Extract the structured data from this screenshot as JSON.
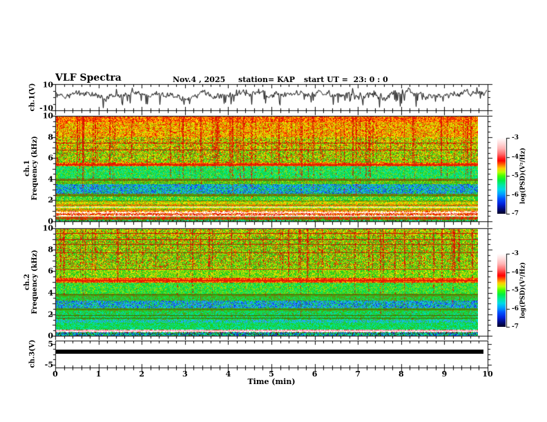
{
  "header": {
    "title": "VLF Spectra",
    "date": "Nov.4 , 2025",
    "station": "station= KAP",
    "start_ut": "start UT =  23: 0 : 0"
  },
  "axes": {
    "time": {
      "title": "Time (min)",
      "min": 0,
      "max": 10,
      "major_ticks": [
        0,
        1,
        2,
        3,
        4,
        5,
        6,
        7,
        8,
        9,
        10
      ],
      "minor_step": 0.2
    },
    "ch1_voltage": {
      "title": "ch.1(V)",
      "ylim": [
        -10,
        10
      ],
      "tick_labels": [
        10,
        -10
      ],
      "minor_ticks": [
        5,
        0,
        -5
      ]
    },
    "ch1_spectrogram": {
      "title_line1": "ch.1",
      "title_line2": "Frequency (kHz)",
      "ylim": [
        0,
        10
      ],
      "tick_labels": [
        10,
        8,
        6,
        4,
        2,
        0
      ],
      "minor_step": 0.5
    },
    "ch2_spectrogram": {
      "title_line1": "ch.2",
      "title_line2": "Frequency (kHz)",
      "ylim": [
        0,
        10
      ],
      "tick_labels": [
        10,
        8,
        6,
        4,
        2,
        0
      ],
      "minor_step": 0.5
    },
    "ch3_voltage": {
      "title": "ch.3(V)",
      "ylim": [
        -5,
        5
      ],
      "tick_labels": [
        5,
        -5
      ],
      "minor_ticks": [
        2.5,
        0,
        -2.5
      ]
    }
  },
  "colorbars": [
    {
      "label": "log(PSD)(V²/Hz)",
      "tick_labels": [
        -3,
        -4,
        -5,
        -6,
        -7
      ]
    },
    {
      "label": "log(PSD)(V²/Hz)",
      "tick_labels": [
        -3,
        -4,
        -5,
        -6,
        -7
      ]
    }
  ],
  "colorbar_gradient": [
    [
      "#ffffff",
      0
    ],
    [
      "#ffe2e2",
      0.06
    ],
    [
      "#ffb4b4",
      0.14
    ],
    [
      "#ff7070",
      0.21
    ],
    [
      "#ff2020",
      0.27
    ],
    [
      "#ff0000",
      0.3
    ],
    [
      "#ff6600",
      0.35
    ],
    [
      "#ffcc00",
      0.4
    ],
    [
      "#bbff00",
      0.45
    ],
    [
      "#44ff00",
      0.5
    ],
    [
      "#00ee44",
      0.56
    ],
    [
      "#00e8a0",
      0.62
    ],
    [
      "#00d8e8",
      0.68
    ],
    [
      "#00a0ff",
      0.74
    ],
    [
      "#0055ff",
      0.8
    ],
    [
      "#0022dd",
      0.87
    ],
    [
      "#000d88",
      0.93
    ],
    [
      "#000022",
      1
    ]
  ],
  "chart_data": [
    {
      "type": "line",
      "name": "ch1_voltage_waveform",
      "ylabel": "ch.1(V)",
      "xlim": [
        0,
        10
      ],
      "ylim": [
        -10,
        10
      ],
      "xlabel": "Time (min)",
      "series_character": {
        "mean": 2.3,
        "noise": 1.6,
        "wander": 1.1,
        "spike_rate": 0.1,
        "spike_down": [
          -9,
          -4
        ],
        "spike_up": [
          2,
          5
        ],
        "seed": 13
      }
    },
    {
      "type": "heatmap",
      "name": "ch1_spectrogram",
      "ylabel": "Frequency (kHz)",
      "xlim": [
        0,
        10
      ],
      "ylim": [
        0,
        10
      ],
      "data_end_min": 9.77,
      "seed": 11,
      "value_scale": {
        "label": "log(PSD)(V²/Hz)",
        "range": [
          -7,
          -3
        ]
      },
      "bands": [
        {
          "f": [
            9.5,
            10.0
          ],
          "mix": [
            [
              "#ee1500",
              0.45
            ],
            [
              "#ff7700",
              0.25
            ],
            [
              "#ffdd00",
              0.3
            ]
          ],
          "streak": 1.0
        },
        {
          "f": [
            8.0,
            9.5
          ],
          "mix": [
            [
              "#ffdd00",
              0.3
            ],
            [
              "#ff7700",
              0.2
            ],
            [
              "#ee1500",
              0.22
            ],
            [
              "#aadd00",
              0.28
            ]
          ],
          "streak": 1.0
        },
        {
          "f": [
            6.9,
            8.0
          ],
          "mix": [
            [
              "#aadd00",
              0.34
            ],
            [
              "#ffdd00",
              0.26
            ],
            [
              "#22cc22",
              0.2
            ],
            [
              "#ee1500",
              0.2
            ]
          ],
          "streak": 0.95
        },
        {
          "f": [
            5.6,
            6.9
          ],
          "mix": [
            [
              "#22cc22",
              0.34
            ],
            [
              "#aadd00",
              0.3
            ],
            [
              "#ffdd00",
              0.2
            ],
            [
              "#ee1500",
              0.16
            ]
          ],
          "streak": 0.9
        },
        {
          "f": [
            5.25,
            5.6
          ],
          "mix": [
            [
              "#ee1500",
              0.5
            ],
            [
              "#ff7700",
              0.3
            ],
            [
              "#ffdd00",
              0.2
            ]
          ],
          "streak": 0.5
        },
        {
          "f": [
            4.1,
            5.25
          ],
          "mix": [
            [
              "#00e87a",
              0.42
            ],
            [
              "#22cc22",
              0.3
            ],
            [
              "#aadd00",
              0.16
            ],
            [
              "#00d8cc",
              0.12
            ]
          ],
          "streak": 0.55
        },
        {
          "f": [
            3.85,
            4.1
          ],
          "mix": [
            [
              "#777711",
              0.4
            ],
            [
              "#22cc22",
              0.35
            ],
            [
              "#bb2200",
              0.25
            ]
          ],
          "streak": 0.4
        },
        {
          "f": [
            3.55,
            3.85
          ],
          "mix": [
            [
              "#22cc22",
              0.5
            ],
            [
              "#aadd00",
              0.3
            ],
            [
              "#777711",
              0.2
            ]
          ],
          "streak": 0.35
        },
        {
          "f": [
            2.6,
            3.55
          ],
          "mix": [
            [
              "#3399ff",
              0.3
            ],
            [
              "#1133ee",
              0.2
            ],
            [
              "#00d8cc",
              0.22
            ],
            [
              "#22cc22",
              0.28
            ]
          ],
          "streak": 0.25
        },
        {
          "f": [
            2.4,
            2.6
          ],
          "mix": [
            [
              "#777711",
              0.45
            ],
            [
              "#22cc22",
              0.4
            ],
            [
              "#bb2200",
              0.15
            ]
          ],
          "streak": 0.2
        },
        {
          "f": [
            1.95,
            2.4
          ],
          "mix": [
            [
              "#22cc22",
              0.5
            ],
            [
              "#00e87a",
              0.25
            ],
            [
              "#ffdd00",
              0.25
            ]
          ],
          "streak": 0.2
        },
        {
          "f": [
            1.0,
            1.95
          ],
          "mix": [
            [
              "#aadd00",
              0.36
            ],
            [
              "#ffdd00",
              0.3
            ],
            [
              "#22cc22",
              0.2
            ],
            [
              "#ff7700",
              0.14
            ]
          ],
          "streak": 0.25
        },
        {
          "f": [
            0.45,
            1.0
          ],
          "mix": [
            [
              "#ffffff",
              0.35
            ],
            [
              "#ffdd00",
              0.18
            ],
            [
              "#ee1500",
              0.32
            ],
            [
              "#ff7700",
              0.15
            ]
          ],
          "streak": 0.1
        },
        {
          "f": [
            0.12,
            0.45
          ],
          "mix": [
            [
              "#ee1500",
              0.35
            ],
            [
              "#ff7700",
              0.18
            ],
            [
              "#22cc22",
              0.27
            ],
            [
              "#777711",
              0.2
            ]
          ],
          "streak": 0.1
        },
        {
          "f": [
            0.0,
            0.12
          ],
          "mix": [
            [
              "#22cc22",
              0.45
            ],
            [
              "#00d8cc",
              0.3
            ],
            [
              "#333300",
              0.25
            ]
          ],
          "streak": 0
        }
      ],
      "hlines": [
        {
          "f": 7.5,
          "color": "#cc1100",
          "px": 1
        },
        {
          "f": 6.85,
          "color": "#cc1100",
          "px": 1
        },
        {
          "f": 5.45,
          "color": "#dd2200",
          "px": 2
        },
        {
          "f": 3.95,
          "color": "#775500",
          "px": 1
        },
        {
          "f": 2.5,
          "color": "#667700",
          "px": 1
        },
        {
          "f": 1.98,
          "color": "#667700",
          "px": 1
        },
        {
          "f": 1.6,
          "color": "#dd3300",
          "px": 1
        },
        {
          "f": 1.35,
          "color": "#ffffff",
          "px": 1
        },
        {
          "f": 1.15,
          "color": "#dd3300",
          "px": 1
        },
        {
          "f": 0.85,
          "color": "#ffffff",
          "px": 1
        },
        {
          "f": 0.7,
          "color": "#dd2200",
          "px": 1
        },
        {
          "f": 0.55,
          "color": "#ffffff",
          "px": 1
        },
        {
          "f": 0.3,
          "color": "#cc2200",
          "px": 1
        }
      ],
      "streaks": {
        "count": 95,
        "color": "#dd1100",
        "min_freqs": [
          [
            4.1,
            0.55
          ],
          [
            1.95,
            0.25
          ],
          [
            5.6,
            0.2
          ]
        ]
      }
    },
    {
      "type": "heatmap",
      "name": "ch2_spectrogram",
      "ylabel": "Frequency (kHz)",
      "xlim": [
        0,
        10
      ],
      "ylim": [
        0,
        10
      ],
      "data_end_min": 9.77,
      "seed": 23,
      "value_scale": {
        "label": "log(PSD)(V²/Hz)",
        "range": [
          -7,
          -3
        ]
      },
      "bands": [
        {
          "f": [
            9.3,
            10.0
          ],
          "mix": [
            [
              "#aadd00",
              0.3
            ],
            [
              "#ffdd00",
              0.25
            ],
            [
              "#22cc22",
              0.3
            ],
            [
              "#ee1500",
              0.15
            ]
          ],
          "streak": 0.9
        },
        {
          "f": [
            6.4,
            9.3
          ],
          "mix": [
            [
              "#22cc22",
              0.4
            ],
            [
              "#aadd00",
              0.28
            ],
            [
              "#ffdd00",
              0.16
            ],
            [
              "#ee1500",
              0.16
            ]
          ],
          "streak": 0.85
        },
        {
          "f": [
            5.45,
            6.4
          ],
          "mix": [
            [
              "#22cc22",
              0.48
            ],
            [
              "#aadd00",
              0.3
            ],
            [
              "#ffdd00",
              0.22
            ]
          ],
          "streak": 0.5
        },
        {
          "f": [
            5.0,
            5.45
          ],
          "mix": [
            [
              "#ee1500",
              0.5
            ],
            [
              "#ff7700",
              0.3
            ],
            [
              "#ffdd00",
              0.2
            ]
          ],
          "streak": 0.4
        },
        {
          "f": [
            3.95,
            5.0
          ],
          "mix": [
            [
              "#22cc22",
              0.42
            ],
            [
              "#00e87a",
              0.3
            ],
            [
              "#aadd00",
              0.28
            ]
          ],
          "streak": 0.4
        },
        {
          "f": [
            3.7,
            3.95
          ],
          "mix": [
            [
              "#777711",
              0.45
            ],
            [
              "#22cc22",
              0.55
            ]
          ],
          "streak": 0.3
        },
        {
          "f": [
            3.3,
            3.7
          ],
          "mix": [
            [
              "#22cc22",
              0.5
            ],
            [
              "#00e87a",
              0.25
            ],
            [
              "#777711",
              0.25
            ]
          ],
          "streak": 0.25
        },
        {
          "f": [
            2.6,
            3.3
          ],
          "mix": [
            [
              "#3399ff",
              0.3
            ],
            [
              "#1133ee",
              0.22
            ],
            [
              "#00d8cc",
              0.2
            ],
            [
              "#22cc22",
              0.28
            ]
          ],
          "streak": 0.2
        },
        {
          "f": [
            2.35,
            2.6
          ],
          "mix": [
            [
              "#777711",
              0.4
            ],
            [
              "#22cc22",
              0.6
            ]
          ],
          "streak": 0.15
        },
        {
          "f": [
            1.5,
            2.35
          ],
          "mix": [
            [
              "#22cc22",
              0.45
            ],
            [
              "#00e87a",
              0.25
            ],
            [
              "#00d8cc",
              0.18
            ],
            [
              "#777711",
              0.12
            ]
          ],
          "streak": 0.15
        },
        {
          "f": [
            1.2,
            1.5
          ],
          "mix": [
            [
              "#00d8cc",
              0.35
            ],
            [
              "#3399ff",
              0.3
            ],
            [
              "#22cc22",
              0.35
            ]
          ],
          "streak": 0.1
        },
        {
          "f": [
            0.55,
            1.2
          ],
          "mix": [
            [
              "#22cc22",
              0.5
            ],
            [
              "#00e87a",
              0.25
            ],
            [
              "#00d8cc",
              0.25
            ]
          ],
          "streak": 0.1
        },
        {
          "f": [
            0.35,
            0.55
          ],
          "mix": [
            [
              "#ffffff",
              0.3
            ],
            [
              "#ff88aa",
              0.3
            ],
            [
              "#ee1500",
              0.2
            ],
            [
              "#22cc22",
              0.2
            ]
          ],
          "streak": 0
        },
        {
          "f": [
            0.0,
            0.35
          ],
          "mix": [
            [
              "#00d8cc",
              0.3
            ],
            [
              "#1133ee",
              0.25
            ],
            [
              "#22cc22",
              0.25
            ],
            [
              "#333300",
              0.2
            ]
          ],
          "streak": 0
        }
      ],
      "hlines": [
        {
          "f": 9.6,
          "color": "#cc1100",
          "px": 1
        },
        {
          "f": 9.05,
          "color": "#cc1100",
          "px": 1
        },
        {
          "f": 8.55,
          "color": "#aa3300",
          "px": 1
        },
        {
          "f": 7.8,
          "color": "#aa3300",
          "px": 1
        },
        {
          "f": 6.25,
          "color": "#dd2200",
          "px": 1
        },
        {
          "f": 5.2,
          "color": "#dd2200",
          "px": 2
        },
        {
          "f": 3.85,
          "color": "#556600",
          "px": 1
        },
        {
          "f": 2.5,
          "color": "#556600",
          "px": 1
        },
        {
          "f": 1.95,
          "color": "#446600",
          "px": 1
        },
        {
          "f": 1.7,
          "color": "#446600",
          "px": 1
        },
        {
          "f": 0.5,
          "color": "#ff99bb",
          "px": 1
        },
        {
          "f": 0.42,
          "color": "#ffffff",
          "px": 1
        }
      ],
      "streaks": {
        "count": 60,
        "color": "#dd1100",
        "min_freqs": [
          [
            5.0,
            0.5
          ],
          [
            3.3,
            0.25
          ],
          [
            1.5,
            0.25
          ]
        ]
      }
    },
    {
      "type": "line",
      "name": "ch3_voltage_bar",
      "ylabel": "ch.3(V)",
      "xlim": [
        0,
        10
      ],
      "ylim": [
        -5,
        5
      ],
      "bar": {
        "t_range": [
          0,
          9.9
        ],
        "v_range": [
          0.1,
          2.3
        ],
        "color": "#000000"
      }
    }
  ]
}
